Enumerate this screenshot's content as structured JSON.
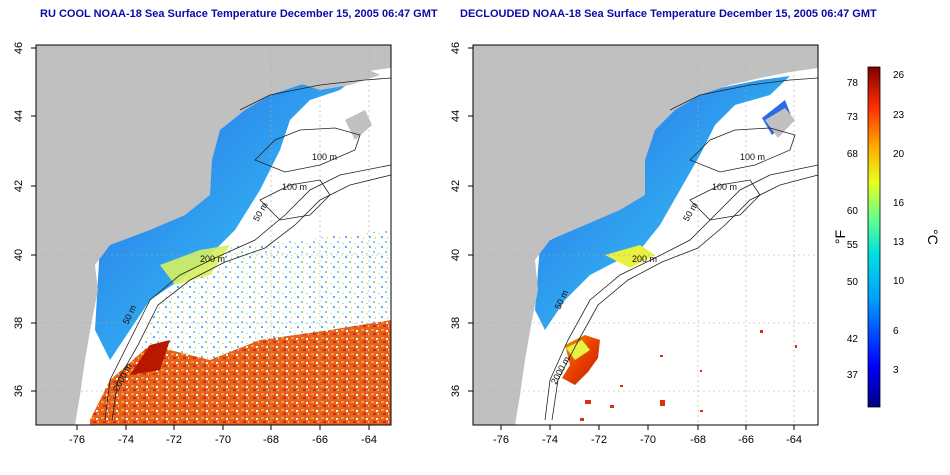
{
  "panels": [
    {
      "id": "left",
      "title": "RU COOL NOAA-18 Sea Surface Temperature December 15, 2005 06:47 GMT",
      "x_ticks": [
        "-76",
        "-74",
        "-72",
        "-70",
        "-68",
        "-66",
        "-64"
      ],
      "y_ticks": [
        "46",
        "44",
        "42",
        "40",
        "38",
        "36"
      ],
      "contour_labels": [
        "100 m",
        "100 m",
        "50 m",
        "200 m",
        "50 m",
        "2000 m"
      ]
    },
    {
      "id": "right",
      "title": "DECLOUDED NOAA-18 Sea Surface Temperature December 15, 2005 06:47 GMT",
      "x_ticks": [
        "-76",
        "-74",
        "-72",
        "-70",
        "-68",
        "-66",
        "-64"
      ],
      "y_ticks": [
        "46",
        "44",
        "42",
        "40",
        "38",
        "36"
      ],
      "contour_labels": [
        "100 m",
        "100 m",
        "50 m",
        "200 m",
        "50 m",
        "2000 m"
      ]
    }
  ],
  "colorbar": {
    "fahrenheit_label": "°F",
    "celsius_label": "°C",
    "fahrenheit_ticks": [
      "78",
      "73",
      "68",
      "60",
      "55",
      "50",
      "42",
      "37"
    ],
    "celsius_ticks": [
      "26",
      "23",
      "20",
      "16",
      "13",
      "10",
      "6",
      "3"
    ]
  },
  "colors": {
    "land": "#c0c0c0",
    "title": "#0a0aa8",
    "warm": "#d02000",
    "cool": "#1f60e0"
  }
}
